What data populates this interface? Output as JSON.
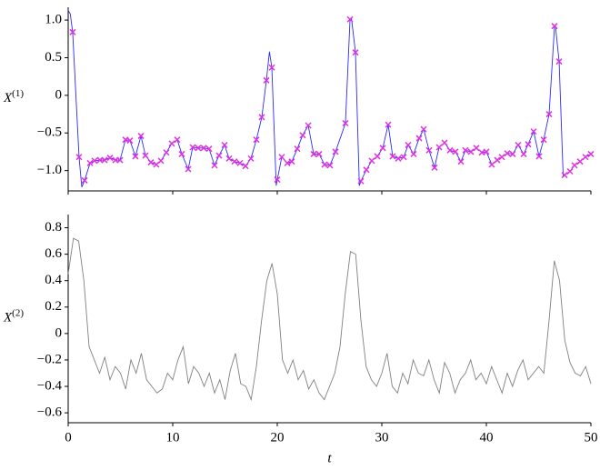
{
  "chart_data": [
    {
      "type": "line",
      "ylabel": "X",
      "ylabel_sup": "(1)",
      "xlim": [
        0,
        50
      ],
      "xticks": [
        0,
        10,
        20,
        30,
        40,
        50
      ],
      "show_xticklabels": false,
      "ylim": [
        -1.27,
        1.17
      ],
      "yticks": [
        {
          "value": -1.0,
          "label": "−1.0"
        },
        {
          "value": -0.5,
          "label": "−0.5"
        },
        0,
        0.5,
        {
          "value": 1.0,
          "label": "1.0"
        }
      ],
      "series": [
        {
          "type": "line",
          "color": "#2b2bff",
          "x": [
            0,
            0.2,
            0.43,
            1.04,
            1.3,
            1.57,
            2.09,
            2.52,
            3.04,
            3.48,
            4.0,
            4.52,
            4.96,
            5.48,
            5.91,
            6.43,
            6.96,
            7.39,
            7.91,
            8.43,
            8.87,
            9.39,
            9.91,
            10.43,
            10.87,
            11.48,
            11.91,
            12.43,
            12.96,
            13.48,
            14.0,
            14.43,
            14.96,
            15.39,
            15.91,
            16.43,
            16.96,
            17.48,
            18.0,
            18.52,
            18.96,
            19.25,
            19.48,
            19.9,
            20.0,
            20.43,
            20.96,
            21.39,
            21.91,
            22.43,
            22.96,
            23.48,
            24.0,
            24.52,
            25.04,
            25.57,
            26.52,
            26.96,
            27.1,
            27.48,
            27.85,
            28.0,
            28.52,
            29.04,
            29.57,
            30.09,
            30.61,
            31.04,
            31.57,
            32.09,
            32.52,
            33.04,
            33.57,
            34.0,
            34.52,
            35.04,
            35.48,
            36.0,
            36.52,
            37.04,
            37.57,
            38.0,
            38.52,
            39.04,
            39.57,
            40.0,
            40.52,
            41.04,
            41.48,
            42.0,
            42.52,
            43.04,
            43.57,
            44.0,
            44.52,
            45.04,
            45.48,
            46.0,
            46.52,
            46.6,
            46.96,
            47.35,
            47.48,
            48.0,
            48.43,
            48.96,
            49.48,
            50.0
          ],
          "values": [
            1.13,
            1.08,
            0.84,
            -0.82,
            -1.22,
            -1.13,
            -0.9,
            -0.87,
            -0.86,
            -0.86,
            -0.83,
            -0.86,
            -0.86,
            -0.59,
            -0.6,
            -0.81,
            -0.54,
            -0.8,
            -0.89,
            -0.92,
            -0.87,
            -0.76,
            -0.64,
            -0.59,
            -0.78,
            -0.98,
            -0.69,
            -0.7,
            -0.7,
            -0.71,
            -0.93,
            -0.8,
            -0.66,
            -0.84,
            -0.88,
            -0.9,
            -0.94,
            -0.84,
            -0.59,
            -0.29,
            0.2,
            0.58,
            0.37,
            -1.2,
            -1.12,
            -0.82,
            -0.9,
            -0.88,
            -0.71,
            -0.53,
            -0.4,
            -0.78,
            -0.78,
            -0.92,
            -0.93,
            -0.75,
            -0.37,
            1.01,
            1.02,
            0.57,
            -1.2,
            -1.14,
            -0.99,
            -0.87,
            -0.81,
            -0.7,
            -0.39,
            -0.81,
            -0.84,
            -0.82,
            -0.66,
            -0.78,
            -0.57,
            -0.45,
            -0.73,
            -0.96,
            -0.69,
            -0.63,
            -0.73,
            -0.75,
            -0.88,
            -0.73,
            -0.75,
            -0.7,
            -0.76,
            -0.75,
            -0.92,
            -0.86,
            -0.82,
            -0.77,
            -0.78,
            -0.66,
            -0.78,
            -0.65,
            -0.48,
            -0.81,
            -0.59,
            -0.25,
            0.92,
            0.93,
            0.45,
            -1.08,
            -1.06,
            -1.01,
            -0.93,
            -0.88,
            -0.82,
            -0.78
          ]
        },
        {
          "type": "scatter",
          "marker": "x",
          "color": "#e030e0",
          "x": [
            0.43,
            1.04,
            1.57,
            2.09,
            2.52,
            3.04,
            3.48,
            4.0,
            4.52,
            4.96,
            5.48,
            5.91,
            6.43,
            6.96,
            7.39,
            7.91,
            8.43,
            8.87,
            9.39,
            9.91,
            10.43,
            10.87,
            11.48,
            11.91,
            12.43,
            12.96,
            13.48,
            14.0,
            14.43,
            14.96,
            15.39,
            15.91,
            16.43,
            16.96,
            17.48,
            18.0,
            18.52,
            18.96,
            19.48,
            20.0,
            20.43,
            20.96,
            21.39,
            21.91,
            22.43,
            22.96,
            23.48,
            24.0,
            24.52,
            25.04,
            25.57,
            26.52,
            26.96,
            27.48,
            28.0,
            28.52,
            29.04,
            29.57,
            30.09,
            30.61,
            31.04,
            31.57,
            32.09,
            32.52,
            33.04,
            33.57,
            34.0,
            34.52,
            35.04,
            35.48,
            36.0,
            36.52,
            37.04,
            37.57,
            38.0,
            38.52,
            39.04,
            39.57,
            40.0,
            40.52,
            41.04,
            41.48,
            42.0,
            42.52,
            43.04,
            43.57,
            44.0,
            44.52,
            45.04,
            45.48,
            46.0,
            46.52,
            46.96,
            47.48,
            48.0,
            48.43,
            48.96,
            49.48,
            50.0
          ],
          "values": [
            0.84,
            -0.82,
            -1.13,
            -0.9,
            -0.87,
            -0.86,
            -0.86,
            -0.83,
            -0.86,
            -0.86,
            -0.59,
            -0.6,
            -0.81,
            -0.54,
            -0.8,
            -0.89,
            -0.92,
            -0.87,
            -0.76,
            -0.64,
            -0.59,
            -0.78,
            -0.98,
            -0.69,
            -0.7,
            -0.7,
            -0.71,
            -0.93,
            -0.8,
            -0.66,
            -0.84,
            -0.88,
            -0.9,
            -0.94,
            -0.84,
            -0.59,
            -0.29,
            0.2,
            0.37,
            -1.12,
            -0.82,
            -0.9,
            -0.88,
            -0.71,
            -0.53,
            -0.4,
            -0.78,
            -0.78,
            -0.92,
            -0.93,
            -0.75,
            -0.37,
            1.01,
            0.57,
            -1.14,
            -0.99,
            -0.87,
            -0.81,
            -0.7,
            -0.39,
            -0.81,
            -0.84,
            -0.82,
            -0.66,
            -0.78,
            -0.57,
            -0.45,
            -0.73,
            -0.96,
            -0.69,
            -0.63,
            -0.73,
            -0.75,
            -0.88,
            -0.73,
            -0.75,
            -0.7,
            -0.76,
            -0.75,
            -0.92,
            -0.86,
            -0.82,
            -0.77,
            -0.78,
            -0.66,
            -0.78,
            -0.65,
            -0.48,
            -0.81,
            -0.59,
            -0.25,
            0.92,
            0.45,
            -1.06,
            -1.01,
            -0.93,
            -0.88,
            -0.82,
            -0.78
          ]
        }
      ]
    },
    {
      "type": "line",
      "ylabel": "X",
      "ylabel_sup": "(2)",
      "xlabel": "t",
      "xlim": [
        0,
        50
      ],
      "xticks": [
        0,
        10,
        20,
        30,
        40,
        50
      ],
      "show_xticklabels": true,
      "ylim": [
        -0.675,
        0.9
      ],
      "yticks": [
        {
          "value": -0.6,
          "label": "−0.6"
        },
        {
          "value": -0.4,
          "label": "−0.4"
        },
        {
          "value": -0.2,
          "label": "−0.2"
        },
        0,
        0.2,
        0.4,
        0.6,
        0.8
      ],
      "series": [
        {
          "type": "line",
          "color": "#808080",
          "x": [
            0,
            0.5,
            1,
            1.5,
            2,
            2.5,
            3,
            3.5,
            4,
            4.5,
            5,
            5.5,
            6,
            6.5,
            7,
            7.5,
            8,
            8.5,
            9,
            9.5,
            10,
            10.5,
            11,
            11.5,
            12,
            12.5,
            13,
            13.5,
            14,
            14.5,
            15,
            15.5,
            16,
            16.5,
            17,
            17.5,
            18,
            18.5,
            19,
            19.5,
            20,
            20.5,
            21,
            21.5,
            22,
            22.5,
            23,
            23.5,
            24,
            24.5,
            25,
            25.5,
            26,
            26.5,
            27,
            27.5,
            28,
            28.5,
            29,
            29.5,
            30,
            30.5,
            31,
            31.5,
            32,
            32.5,
            33,
            33.5,
            34,
            34.5,
            35,
            35.5,
            36,
            36.5,
            37,
            37.5,
            38,
            38.5,
            39,
            39.5,
            40,
            40.5,
            41,
            41.5,
            42,
            42.5,
            43,
            43.5,
            44,
            44.5,
            45,
            45.5,
            46,
            46.5,
            47,
            47.5,
            48,
            48.5,
            49,
            49.5,
            50
          ],
          "values": [
            0.45,
            0.72,
            0.7,
            0.4,
            -0.1,
            -0.2,
            -0.3,
            -0.18,
            -0.35,
            -0.25,
            -0.3,
            -0.42,
            -0.2,
            -0.3,
            -0.15,
            -0.35,
            -0.4,
            -0.45,
            -0.42,
            -0.3,
            -0.35,
            -0.2,
            -0.1,
            -0.38,
            -0.25,
            -0.3,
            -0.4,
            -0.3,
            -0.45,
            -0.35,
            -0.5,
            -0.28,
            -0.15,
            -0.38,
            -0.4,
            -0.5,
            -0.25,
            0.1,
            0.4,
            0.53,
            0.3,
            -0.2,
            -0.3,
            -0.2,
            -0.35,
            -0.28,
            -0.42,
            -0.35,
            -0.45,
            -0.5,
            -0.4,
            -0.3,
            -0.1,
            0.3,
            0.62,
            0.6,
            0.1,
            -0.25,
            -0.35,
            -0.4,
            -0.3,
            -0.15,
            -0.4,
            -0.45,
            -0.3,
            -0.38,
            -0.2,
            -0.3,
            -0.32,
            -0.2,
            -0.35,
            -0.45,
            -0.22,
            -0.3,
            -0.45,
            -0.35,
            -0.3,
            -0.2,
            -0.35,
            -0.3,
            -0.38,
            -0.25,
            -0.35,
            -0.45,
            -0.3,
            -0.4,
            -0.28,
            -0.2,
            -0.35,
            -0.3,
            -0.25,
            -0.3,
            0.1,
            0.55,
            0.4,
            -0.05,
            -0.22,
            -0.3,
            -0.32,
            -0.25,
            -0.38
          ]
        }
      ]
    }
  ]
}
